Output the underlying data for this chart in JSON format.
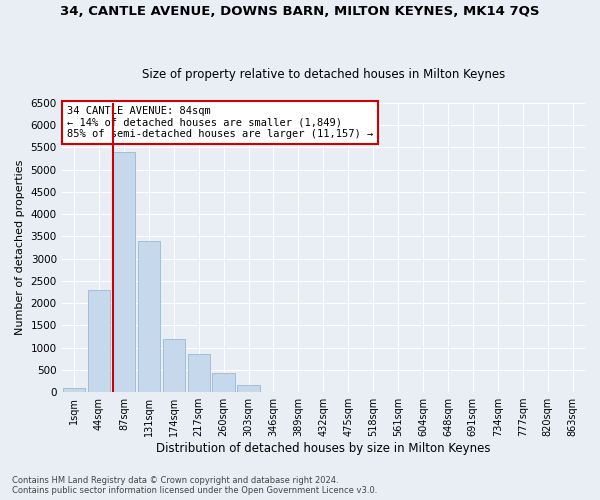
{
  "title": "34, CANTLE AVENUE, DOWNS BARN, MILTON KEYNES, MK14 7QS",
  "subtitle": "Size of property relative to detached houses in Milton Keynes",
  "xlabel": "Distribution of detached houses by size in Milton Keynes",
  "ylabel": "Number of detached properties",
  "footnote1": "Contains HM Land Registry data © Crown copyright and database right 2024.",
  "footnote2": "Contains public sector information licensed under the Open Government Licence v3.0.",
  "annotation_title": "34 CANTLE AVENUE: 84sqm",
  "annotation_line1": "← 14% of detached houses are smaller (1,849)",
  "annotation_line2": "85% of semi-detached houses are larger (11,157) →",
  "bar_categories": [
    "1sqm",
    "44sqm",
    "87sqm",
    "131sqm",
    "174sqm",
    "217sqm",
    "260sqm",
    "303sqm",
    "346sqm",
    "389sqm",
    "432sqm",
    "475sqm",
    "518sqm",
    "561sqm",
    "604sqm",
    "648sqm",
    "691sqm",
    "734sqm",
    "777sqm",
    "820sqm",
    "863sqm"
  ],
  "bar_values": [
    100,
    2300,
    5400,
    3400,
    1200,
    850,
    430,
    150,
    0,
    0,
    0,
    0,
    0,
    0,
    0,
    0,
    0,
    0,
    0,
    0,
    0
  ],
  "bar_color": "#c6d9ec",
  "bar_edge_color": "#9ab8d4",
  "marker_bin_index": 2,
  "marker_color": "#cc0000",
  "ylim_max": 6500,
  "ytick_step": 500,
  "bg_color": "#e8eef4",
  "grid_color": "#ffffff",
  "annotation_box_facecolor": "#ffffff",
  "annotation_box_edgecolor": "#cc0000"
}
